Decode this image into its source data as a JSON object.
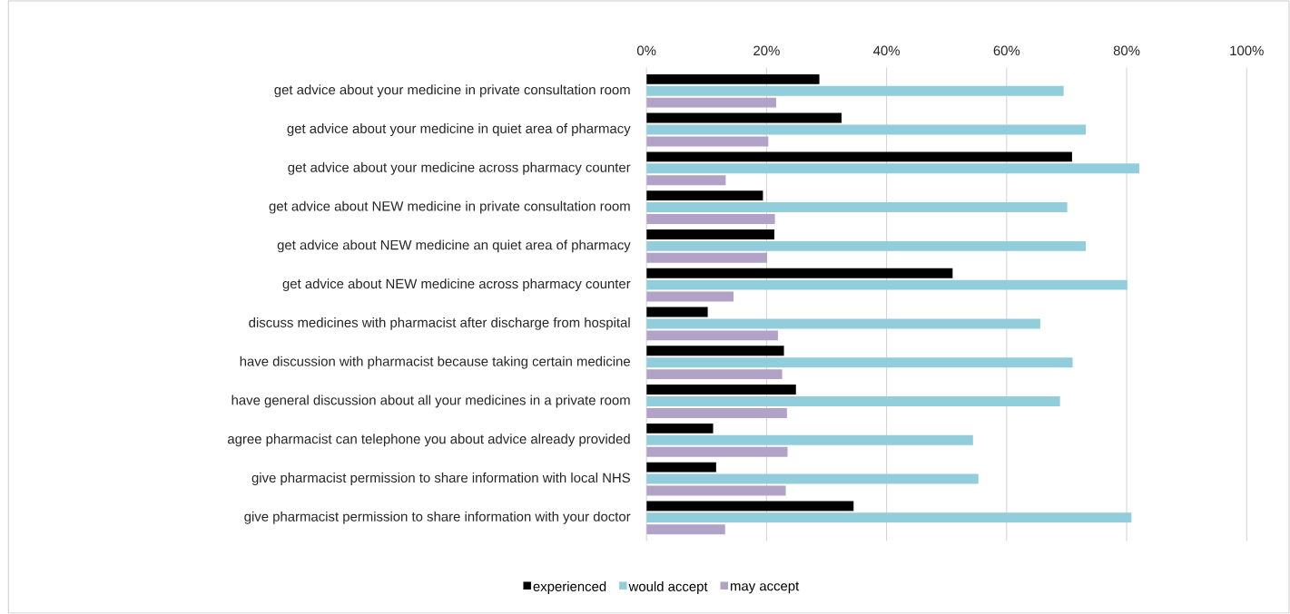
{
  "chart_data": {
    "type": "bar",
    "orientation": "horizontal",
    "categories": [
      "get advice about your medicine in private consultation room",
      "get advice about your medicine in quiet area of pharmacy",
      "get advice about your medicine across pharmacy counter",
      "get advice about NEW medicine in private consultation room",
      "get advice about NEW medicine an quiet area of pharmacy",
      "get advice about NEW medicine across pharmacy counter",
      "discuss medicines with pharmacist after discharge from hospital",
      "have discussion with pharmacist because taking certain medicine",
      "have general discussion about all your medicines in a private room",
      "agree pharmacist can telephone you about advice already provided",
      "give pharmacist permission to share information with local NHS",
      "give pharmacist permission to share information with your doctor"
    ],
    "series": [
      {
        "name": "experienced",
        "color": "#000000",
        "values": [
          28.8,
          32.5,
          70.9,
          19.4,
          21.3,
          51.0,
          10.2,
          22.9,
          24.9,
          11.1,
          11.6,
          34.5
        ]
      },
      {
        "name": "would accept",
        "color": "#92cddc",
        "values": [
          69.5,
          73.2,
          82.1,
          70.1,
          73.2,
          80.1,
          65.6,
          71.0,
          68.9,
          54.4,
          55.3,
          80.8
        ]
      },
      {
        "name": "may accept",
        "color": "#b3a2c7",
        "values": [
          21.6,
          20.3,
          13.2,
          21.4,
          20.1,
          14.5,
          21.9,
          22.6,
          23.4,
          23.5,
          23.2,
          13.1
        ]
      }
    ],
    "xlim": [
      0,
      100
    ],
    "xticks": [
      {
        "value": 0,
        "label": "0%"
      },
      {
        "value": 20,
        "label": "20%"
      },
      {
        "value": 40,
        "label": "40%"
      },
      {
        "value": 60,
        "label": "60%"
      },
      {
        "value": 80,
        "label": "80%"
      },
      {
        "value": 100,
        "label": "100%"
      }
    ],
    "grid": "x",
    "legend": "bottom"
  }
}
